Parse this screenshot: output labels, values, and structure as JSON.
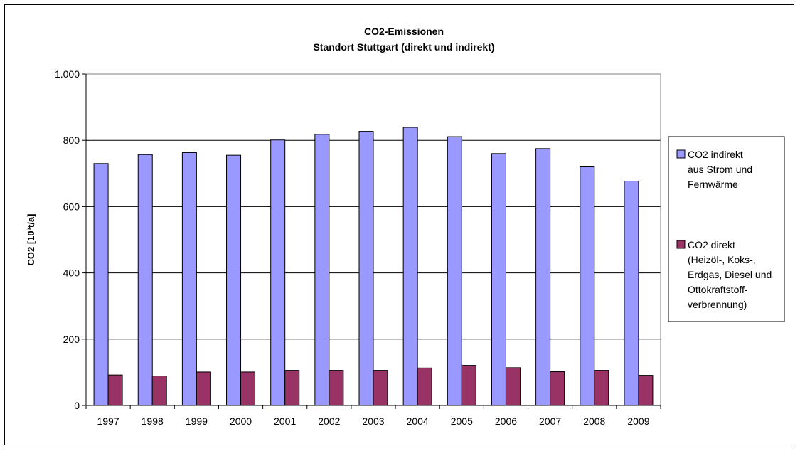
{
  "chart_data": {
    "type": "bar",
    "title": "CO2-Emissionen",
    "subtitle": "Standort Stuttgart (direkt und indirekt)",
    "xlabel": "",
    "ylabel": "CO2 [10³t/a]",
    "ylim": [
      0,
      1000
    ],
    "yticks": [
      0,
      200,
      400,
      600,
      800,
      1000
    ],
    "ytick_labels": [
      "0",
      "200",
      "400",
      "600",
      "800",
      "1.000"
    ],
    "grid": true,
    "legend_position": "right",
    "categories": [
      "1997",
      "1998",
      "1999",
      "2000",
      "2001",
      "2002",
      "2003",
      "2004",
      "2005",
      "2006",
      "2007",
      "2008",
      "2009"
    ],
    "series": [
      {
        "name": "CO2 indirekt aus Strom und Fernwärme",
        "legend_lines": [
          "CO2 indirekt",
          "aus Strom und",
          "Fernwärme"
        ],
        "color": "#9999ff",
        "values": [
          730,
          757,
          763,
          755,
          801,
          818,
          827,
          839,
          811,
          760,
          775,
          720,
          677
        ]
      },
      {
        "name": "CO2 direkt (Heizöl-, Koks-, Erdgas, Diesel und Ottokraftstoff-verbrennung)",
        "legend_lines": [
          "CO2 direkt",
          "(Heizöl-, Koks-,",
          "Erdgas, Diesel und",
          "Ottokraftstoff-",
          "verbrennung)"
        ],
        "color": "#993366",
        "values": [
          92,
          89,
          101,
          101,
          106,
          106,
          106,
          113,
          121,
          114,
          102,
          106,
          91
        ]
      }
    ],
    "plot_background": "#ffffff",
    "grid_color": "#000000"
  }
}
